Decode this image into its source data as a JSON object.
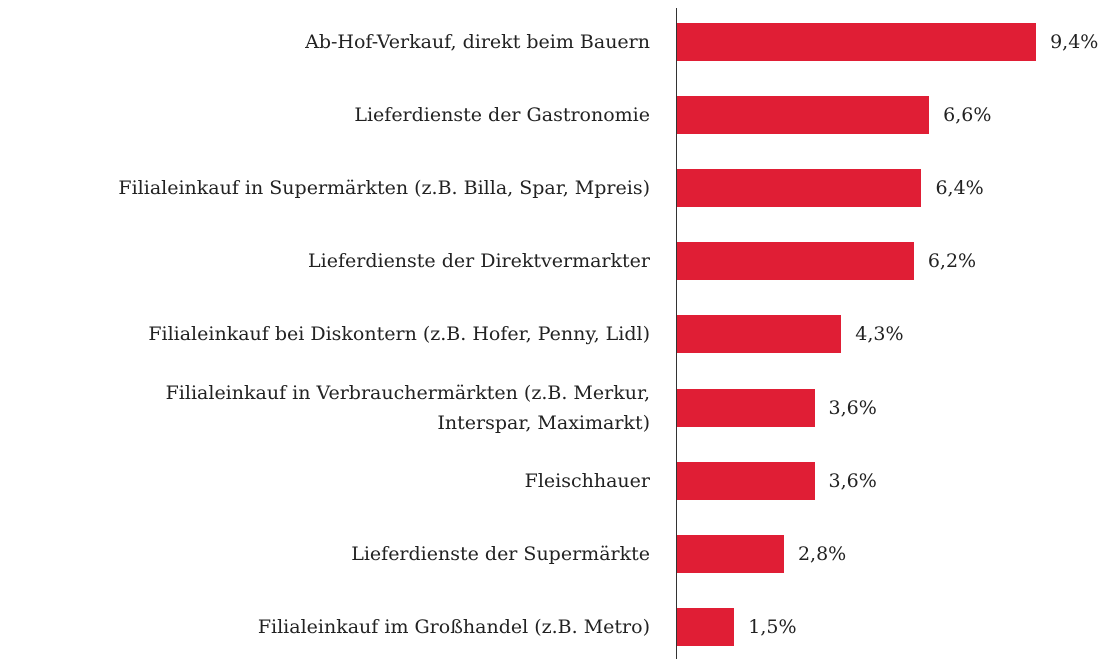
{
  "chart_data": {
    "type": "bar",
    "orientation": "horizontal",
    "categories": [
      "Ab-Hof-Verkauf, direkt beim Bauern",
      "Lieferdienste der Gastronomie",
      "Filialeinkauf in Supermärkten (z.B. Billa, Spar, Mpreis)",
      "Lieferdienste der Direktvermarkter",
      "Filialeinkauf bei Diskontern (z.B. Hofer, Penny, Lidl)",
      "Filialeinkauf in Verbrauchermärkten (z.B. Merkur,\nInterspar, Maximarkt)",
      "Fleischhauer",
      "Lieferdienste der Supermärkte",
      "Filialeinkauf im Großhandel (z.B. Metro)"
    ],
    "values": [
      9.4,
      6.6,
      6.4,
      6.2,
      4.3,
      3.6,
      3.6,
      2.8,
      1.5
    ],
    "value_labels": [
      "9,4%",
      "6,6%",
      "6,4%",
      "6,2%",
      "4,3%",
      "3,6%",
      "3,6%",
      "2,8%",
      "1,5%"
    ],
    "color": "#e01e35"
  }
}
